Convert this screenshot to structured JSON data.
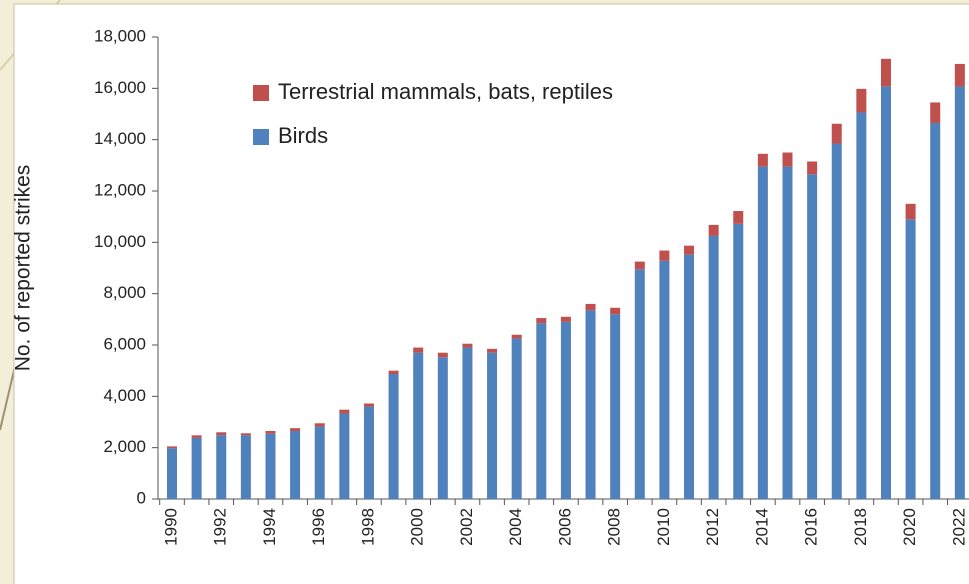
{
  "chart_data": {
    "type": "stacked-bar",
    "y_label": "No. of reported strikes",
    "categories": [
      "1990",
      null,
      "1992",
      null,
      "1994",
      null,
      "1996",
      null,
      "1998",
      null,
      "2000",
      null,
      "2002",
      null,
      "2004",
      null,
      "2006",
      null,
      "2008",
      null,
      "2010",
      null,
      "2012",
      null,
      "2014",
      null,
      "2016",
      null,
      "2018",
      null,
      "2020",
      null,
      "2022"
    ],
    "series": [
      {
        "name": "Birds",
        "color": "#4f81bd",
        "values": [
          1980,
          2380,
          2490,
          2480,
          2540,
          2650,
          2820,
          3330,
          3600,
          4870,
          5700,
          5520,
          5900,
          5700,
          6250,
          6850,
          6900,
          7350,
          7200,
          8950,
          9280,
          9520,
          10250,
          10720,
          12950,
          12950,
          12650,
          13850,
          15060,
          16080,
          10900,
          14650,
          16070
        ]
      },
      {
        "name": "Terrestrial mammals, bats, reptiles",
        "color": "#c0504d",
        "values": [
          70,
          100,
          110,
          80,
          110,
          110,
          130,
          150,
          120,
          130,
          200,
          180,
          150,
          150,
          150,
          200,
          200,
          250,
          250,
          300,
          400,
          350,
          430,
          500,
          500,
          550,
          500,
          770,
          920,
          1070,
          600,
          800,
          880
        ]
      }
    ],
    "ylim": [
      0,
      18000
    ],
    "yticks": [
      0,
      {
        "value": 2000,
        "label": "2,000"
      },
      {
        "value": 4000,
        "label": "4,000"
      },
      {
        "value": 6000,
        "label": "6,000"
      },
      {
        "value": 8000,
        "label": "8,000"
      },
      {
        "value": 10000,
        "label": "10,000"
      },
      {
        "value": 12000,
        "label": "12,000"
      },
      {
        "value": 14000,
        "label": "14,000"
      },
      {
        "value": 16000,
        "label": "16,000"
      },
      {
        "value": 18000,
        "label": "18,000"
      }
    ],
    "legend": "upper-left"
  }
}
